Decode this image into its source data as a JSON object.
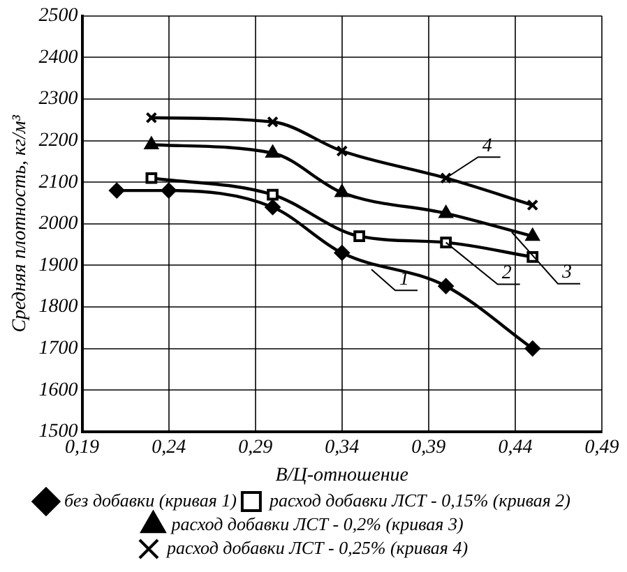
{
  "chart_data": {
    "type": "line",
    "xlabel": "В/Ц-отношение",
    "ylabel": "Средняя плотность, кг/м³",
    "xlim": [
      0.19,
      0.49
    ],
    "xticks": [
      {
        "value": 0.19,
        "label": "0,19"
      },
      {
        "value": 0.24,
        "label": "0,24"
      },
      {
        "value": 0.29,
        "label": "0,29"
      },
      {
        "value": 0.34,
        "label": "0,34"
      },
      {
        "value": 0.39,
        "label": "0,39"
      },
      {
        "value": 0.44,
        "label": "0,44"
      },
      {
        "value": 0.49,
        "label": "0,49"
      }
    ],
    "ylim": [
      1500,
      2500
    ],
    "yticks": [
      1500,
      1600,
      1700,
      1800,
      1900,
      2000,
      2100,
      2200,
      2300,
      2400,
      2500
    ],
    "grid": true,
    "legend": "bottom",
    "line_style": "solid",
    "series": [
      {
        "name": "без добавки (кривая 1)",
        "color": "#000000",
        "marker": "diamond",
        "x": [
          0.21,
          0.24,
          0.3,
          0.34,
          0.4,
          0.45
        ],
        "values": [
          2080,
          2080,
          2040,
          1930,
          1850,
          1700
        ]
      },
      {
        "name": "расход добавки ЛСТ - 0,15% (кривая 2)",
        "color": "#000000",
        "marker": "square",
        "x": [
          0.23,
          0.3,
          0.35,
          0.4,
          0.45
        ],
        "values": [
          2110,
          2070,
          1970,
          1955,
          1920
        ]
      },
      {
        "name": "расход добавки ЛСТ - 0,2% (кривая 3)",
        "color": "#000000",
        "marker": "triangle",
        "x": [
          0.23,
          0.3,
          0.34,
          0.4,
          0.45
        ],
        "values": [
          2190,
          2170,
          2075,
          2025,
          1970
        ]
      },
      {
        "name": "расход добавки ЛСТ - 0,25% (кривая 4)",
        "color": "#000000",
        "marker": "cross",
        "x": [
          0.23,
          0.3,
          0.34,
          0.4,
          0.45
        ],
        "values": [
          2255,
          2245,
          2175,
          2110,
          2045
        ]
      }
    ],
    "annotations": [
      {
        "text": "1",
        "x": 0.357,
        "y": 1890
      },
      {
        "text": "2",
        "x": 0.4,
        "y": 1955
      },
      {
        "text": "3",
        "x": 0.438,
        "y": 1980
      },
      {
        "text": "4",
        "x": 0.4,
        "y": 2110
      }
    ]
  }
}
